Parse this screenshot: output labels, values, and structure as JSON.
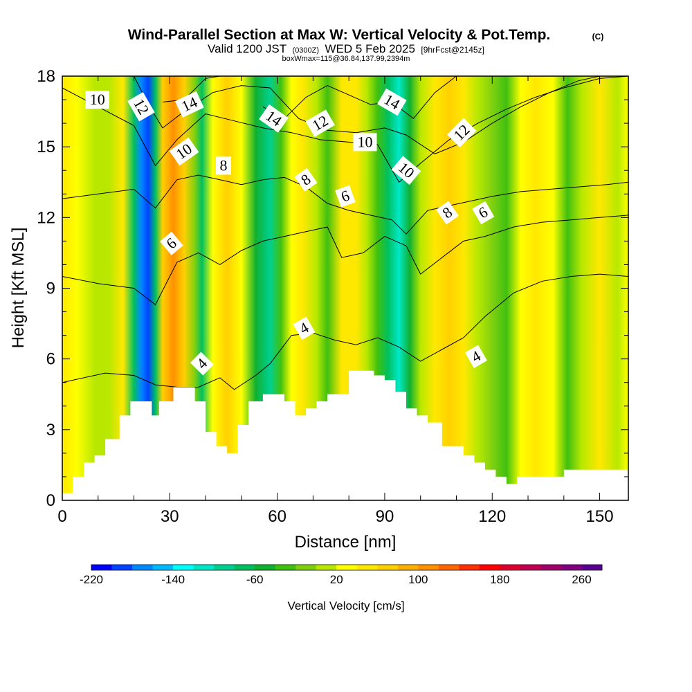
{
  "chart_data": {
    "type": "heatmap",
    "title": "Wind-Parallel Section at Max W: Vertical Velocity & Pot.Temp.",
    "title_mark": "(C)",
    "subtitle": {
      "valid_prefix": "Valid 1200 JST",
      "utc": "(0300Z)",
      "date": "WED 5 Feb 2025",
      "fcst": "[9hrFcst@2145z]"
    },
    "box_info": "boxWmax=115@36.84,137.99,2394m",
    "xlabel": "Distance [nm]",
    "ylabel": "Height [Kft MSL]",
    "xlim": [
      0,
      158
    ],
    "ylim": [
      0,
      18
    ],
    "x_ticks": [
      0,
      30,
      60,
      90,
      120,
      150
    ],
    "y_ticks": [
      0,
      3,
      6,
      9,
      12,
      15,
      18
    ],
    "colorbar": {
      "label": "Vertical Velocity [cm/s]",
      "min": -220,
      "max": 280,
      "step": 20,
      "tick_labels": [
        -220,
        -140,
        -60,
        20,
        100,
        180,
        260
      ],
      "colors": [
        "#0000ff",
        "#0044ff",
        "#0088ff",
        "#00bbff",
        "#00ffff",
        "#00e8c8",
        "#00d090",
        "#00c060",
        "#10b030",
        "#40c010",
        "#80d010",
        "#b8e800",
        "#ffff00",
        "#ffe800",
        "#ffd000",
        "#ffb000",
        "#ff9000",
        "#ff6800",
        "#ff3000",
        "#ff0000",
        "#e00030",
        "#c00050",
        "#a00068",
        "#800080",
        "#5a0090"
      ]
    },
    "shading_columns": [
      {
        "x": 0,
        "w": 40
      },
      {
        "x": 4,
        "w": 30
      },
      {
        "x": 9,
        "w": 10
      },
      {
        "x": 13,
        "w": 10
      },
      {
        "x": 17,
        "w": 50
      },
      {
        "x": 20,
        "w": -80
      },
      {
        "x": 22,
        "w": -180
      },
      {
        "x": 24,
        "w": -200
      },
      {
        "x": 26,
        "w": -70
      },
      {
        "x": 28,
        "w": 60
      },
      {
        "x": 31,
        "w": 110
      },
      {
        "x": 34,
        "w": 60
      },
      {
        "x": 37,
        "w": -10
      },
      {
        "x": 39,
        "w": -70
      },
      {
        "x": 42,
        "w": 20
      },
      {
        "x": 46,
        "w": 70
      },
      {
        "x": 50,
        "w": 20
      },
      {
        "x": 54,
        "w": -50
      },
      {
        "x": 58,
        "w": -90
      },
      {
        "x": 61,
        "w": -40
      },
      {
        "x": 64,
        "w": 20
      },
      {
        "x": 67,
        "w": 40
      },
      {
        "x": 71,
        "w": 0
      },
      {
        "x": 74,
        "w": -30
      },
      {
        "x": 78,
        "w": 40
      },
      {
        "x": 82,
        "w": 50
      },
      {
        "x": 85,
        "w": 0
      },
      {
        "x": 88,
        "w": -40
      },
      {
        "x": 91,
        "w": -80
      },
      {
        "x": 94,
        "w": -110
      },
      {
        "x": 97,
        "w": -60
      },
      {
        "x": 100,
        "w": 10
      },
      {
        "x": 104,
        "w": 50
      },
      {
        "x": 108,
        "w": 60
      },
      {
        "x": 112,
        "w": 40
      },
      {
        "x": 116,
        "w": 10
      },
      {
        "x": 120,
        "w": -20
      },
      {
        "x": 124,
        "w": -40
      },
      {
        "x": 128,
        "w": 20
      },
      {
        "x": 132,
        "w": 50
      },
      {
        "x": 137,
        "w": 20
      },
      {
        "x": 141,
        "w": -30
      },
      {
        "x": 145,
        "w": 10
      },
      {
        "x": 150,
        "w": 40
      },
      {
        "x": 155,
        "w": 0
      },
      {
        "x": 158,
        "w": 20
      }
    ],
    "terrain": [
      [
        0,
        0.3
      ],
      [
        3,
        0.3
      ],
      [
        3,
        1.0
      ],
      [
        6,
        1.0
      ],
      [
        6,
        1.6
      ],
      [
        9,
        1.6
      ],
      [
        9,
        1.9
      ],
      [
        12,
        1.9
      ],
      [
        12,
        2.6
      ],
      [
        16,
        2.6
      ],
      [
        16,
        3.6
      ],
      [
        19,
        3.6
      ],
      [
        19,
        4.2
      ],
      [
        25,
        4.2
      ],
      [
        25,
        3.6
      ],
      [
        27,
        3.6
      ],
      [
        27,
        4.2
      ],
      [
        31,
        4.2
      ],
      [
        31,
        4.8
      ],
      [
        37,
        4.8
      ],
      [
        37,
        4.2
      ],
      [
        40,
        4.2
      ],
      [
        40,
        2.9
      ],
      [
        43,
        2.9
      ],
      [
        43,
        2.3
      ],
      [
        46,
        2.3
      ],
      [
        46,
        2.0
      ],
      [
        49,
        2.0
      ],
      [
        49,
        3.2
      ],
      [
        52,
        3.2
      ],
      [
        52,
        4.2
      ],
      [
        56,
        4.2
      ],
      [
        56,
        4.5
      ],
      [
        62,
        4.5
      ],
      [
        62,
        4.2
      ],
      [
        65,
        4.2
      ],
      [
        65,
        3.6
      ],
      [
        68,
        3.6
      ],
      [
        68,
        3.9
      ],
      [
        71,
        3.9
      ],
      [
        71,
        4.2
      ],
      [
        74,
        4.2
      ],
      [
        74,
        4.5
      ],
      [
        80,
        4.5
      ],
      [
        80,
        5.5
      ],
      [
        87,
        5.5
      ],
      [
        87,
        5.3
      ],
      [
        90,
        5.3
      ],
      [
        90,
        5.1
      ],
      [
        93,
        5.1
      ],
      [
        93,
        4.6
      ],
      [
        96,
        4.6
      ],
      [
        96,
        3.9
      ],
      [
        99,
        3.9
      ],
      [
        99,
        3.6
      ],
      [
        102,
        3.6
      ],
      [
        102,
        3.3
      ],
      [
        106,
        3.3
      ],
      [
        106,
        2.3
      ],
      [
        112,
        2.3
      ],
      [
        112,
        1.9
      ],
      [
        115,
        1.9
      ],
      [
        115,
        1.6
      ],
      [
        118,
        1.6
      ],
      [
        118,
        1.3
      ],
      [
        121,
        1.3
      ],
      [
        121,
        1.0
      ],
      [
        124,
        1.0
      ],
      [
        124,
        0.7
      ],
      [
        127,
        0.7
      ],
      [
        127,
        1.0
      ],
      [
        140,
        1.0
      ],
      [
        140,
        1.3
      ],
      [
        158,
        1.3
      ]
    ],
    "theta_contours": [
      {
        "level": 4,
        "points": [
          [
            0,
            5.0
          ],
          [
            12,
            5.4
          ],
          [
            20,
            5.3
          ],
          [
            26,
            4.9
          ],
          [
            32,
            4.8
          ],
          [
            38,
            4.8
          ],
          [
            44,
            5.2
          ],
          [
            48,
            4.7
          ],
          [
            54,
            5.3
          ],
          [
            58,
            5.8
          ],
          [
            64,
            7.0
          ],
          [
            70,
            7.1
          ],
          [
            76,
            6.8
          ],
          [
            82,
            6.6
          ],
          [
            88,
            6.9
          ],
          [
            94,
            6.5
          ],
          [
            100,
            5.9
          ],
          [
            106,
            6.4
          ],
          [
            112,
            6.9
          ],
          [
            118,
            7.8
          ],
          [
            126,
            8.8
          ],
          [
            134,
            9.3
          ],
          [
            142,
            9.5
          ],
          [
            150,
            9.6
          ],
          [
            158,
            9.5
          ]
        ]
      },
      {
        "level": 6,
        "points": [
          [
            0,
            9.5
          ],
          [
            10,
            9.2
          ],
          [
            20,
            9.0
          ],
          [
            26,
            8.3
          ],
          [
            32,
            10.1
          ],
          [
            38,
            10.5
          ],
          [
            44,
            10.0
          ],
          [
            50,
            10.6
          ],
          [
            56,
            11.0
          ],
          [
            62,
            11.2
          ],
          [
            68,
            11.4
          ],
          [
            74,
            11.6
          ],
          [
            78,
            10.3
          ],
          [
            84,
            10.5
          ],
          [
            90,
            11.2
          ],
          [
            96,
            10.8
          ],
          [
            100,
            9.6
          ],
          [
            106,
            10.3
          ],
          [
            112,
            11.0
          ],
          [
            118,
            11.2
          ],
          [
            126,
            11.6
          ],
          [
            134,
            11.8
          ],
          [
            142,
            11.9
          ],
          [
            150,
            12.0
          ],
          [
            158,
            12.1
          ]
        ]
      },
      {
        "level": 8,
        "points": [
          [
            0,
            12.8
          ],
          [
            10,
            13.0
          ],
          [
            20,
            13.2
          ],
          [
            26,
            12.4
          ],
          [
            32,
            13.6
          ],
          [
            38,
            13.8
          ],
          [
            44,
            13.6
          ],
          [
            50,
            13.4
          ],
          [
            56,
            13.6
          ],
          [
            62,
            13.7
          ],
          [
            68,
            13.3
          ],
          [
            74,
            12.6
          ],
          [
            80,
            12.3
          ],
          [
            86,
            12.1
          ],
          [
            92,
            11.9
          ],
          [
            96,
            11.3
          ],
          [
            102,
            12.3
          ],
          [
            108,
            12.5
          ],
          [
            114,
            12.7
          ],
          [
            120,
            12.9
          ],
          [
            128,
            13.1
          ],
          [
            136,
            13.2
          ],
          [
            144,
            13.3
          ],
          [
            152,
            13.4
          ],
          [
            158,
            13.5
          ]
        ]
      },
      {
        "level": 10,
        "points": [
          [
            0,
            17.5
          ],
          [
            10,
            16.7
          ],
          [
            20,
            15.9
          ],
          [
            26,
            14.2
          ],
          [
            32,
            15.3
          ],
          [
            40,
            16.4
          ],
          [
            48,
            16.1
          ],
          [
            56,
            15.8
          ],
          [
            64,
            15.6
          ],
          [
            72,
            15.3
          ],
          [
            80,
            15.2
          ],
          [
            88,
            15.1
          ],
          [
            94,
            13.5
          ],
          [
            100,
            14.3
          ],
          [
            108,
            15.3
          ],
          [
            116,
            16.0
          ],
          [
            124,
            16.6
          ],
          [
            132,
            17.1
          ],
          [
            140,
            17.5
          ],
          [
            150,
            17.9
          ],
          [
            158,
            18.0
          ]
        ]
      },
      {
        "level": 12,
        "points": [
          [
            20,
            18.0
          ],
          [
            24,
            16.8
          ],
          [
            28,
            15.8
          ],
          [
            34,
            16.5
          ],
          [
            42,
            17.3
          ],
          [
            50,
            17.6
          ],
          [
            58,
            17.5
          ],
          [
            66,
            16.2
          ],
          [
            74,
            15.7
          ],
          [
            82,
            15.6
          ],
          [
            90,
            15.8
          ],
          [
            96,
            15.5
          ],
          [
            104,
            14.7
          ],
          [
            112,
            15.2
          ],
          [
            120,
            16.0
          ],
          [
            128,
            16.7
          ],
          [
            136,
            17.3
          ],
          [
            144,
            17.8
          ],
          [
            150,
            18.0
          ]
        ]
      },
      {
        "level": 14,
        "points": [
          [
            28,
            16.9
          ],
          [
            34,
            17.0
          ],
          [
            40,
            17.9
          ],
          [
            44,
            18.0
          ]
        ]
      },
      {
        "level": 14,
        "points": [
          [
            56,
            16.7
          ],
          [
            62,
            16.2
          ],
          [
            68,
            17.1
          ],
          [
            74,
            17.6
          ],
          [
            80,
            17.2
          ],
          [
            86,
            16.8
          ],
          [
            92,
            16.9
          ],
          [
            98,
            16.2
          ],
          [
            104,
            17.3
          ],
          [
            110,
            18.0
          ]
        ]
      }
    ],
    "contour_labels": [
      {
        "text": "10",
        "x": 9.8,
        "y": 17.0,
        "angle": 0
      },
      {
        "text": "12",
        "x": 22.0,
        "y": 16.7,
        "angle": 60
      },
      {
        "text": "14",
        "x": 35.5,
        "y": 16.8,
        "angle": -25
      },
      {
        "text": "10",
        "x": 34.0,
        "y": 14.8,
        "angle": -35
      },
      {
        "text": "8",
        "x": 45.0,
        "y": 14.2,
        "angle": 0
      },
      {
        "text": "14",
        "x": 59.0,
        "y": 16.2,
        "angle": 35
      },
      {
        "text": "12",
        "x": 72.0,
        "y": 16.0,
        "angle": -30
      },
      {
        "text": "10",
        "x": 84.5,
        "y": 15.2,
        "angle": 0
      },
      {
        "text": "14",
        "x": 92.0,
        "y": 16.9,
        "angle": 30
      },
      {
        "text": "8",
        "x": 68.0,
        "y": 13.6,
        "angle": -35
      },
      {
        "text": "6",
        "x": 79.0,
        "y": 12.9,
        "angle": -20
      },
      {
        "text": "10",
        "x": 96.0,
        "y": 14.0,
        "angle": 40
      },
      {
        "text": "12",
        "x": 111.5,
        "y": 15.6,
        "angle": -45
      },
      {
        "text": "8",
        "x": 107.5,
        "y": 12.2,
        "angle": -35
      },
      {
        "text": "6",
        "x": 117.5,
        "y": 12.2,
        "angle": -30
      },
      {
        "text": "6",
        "x": 30.5,
        "y": 10.9,
        "angle": -40
      },
      {
        "text": "4",
        "x": 67.5,
        "y": 7.3,
        "angle": -30
      },
      {
        "text": "4",
        "x": 39.0,
        "y": 5.8,
        "angle": -45
      },
      {
        "text": "4",
        "x": 115.5,
        "y": 6.1,
        "angle": -30
      }
    ]
  }
}
